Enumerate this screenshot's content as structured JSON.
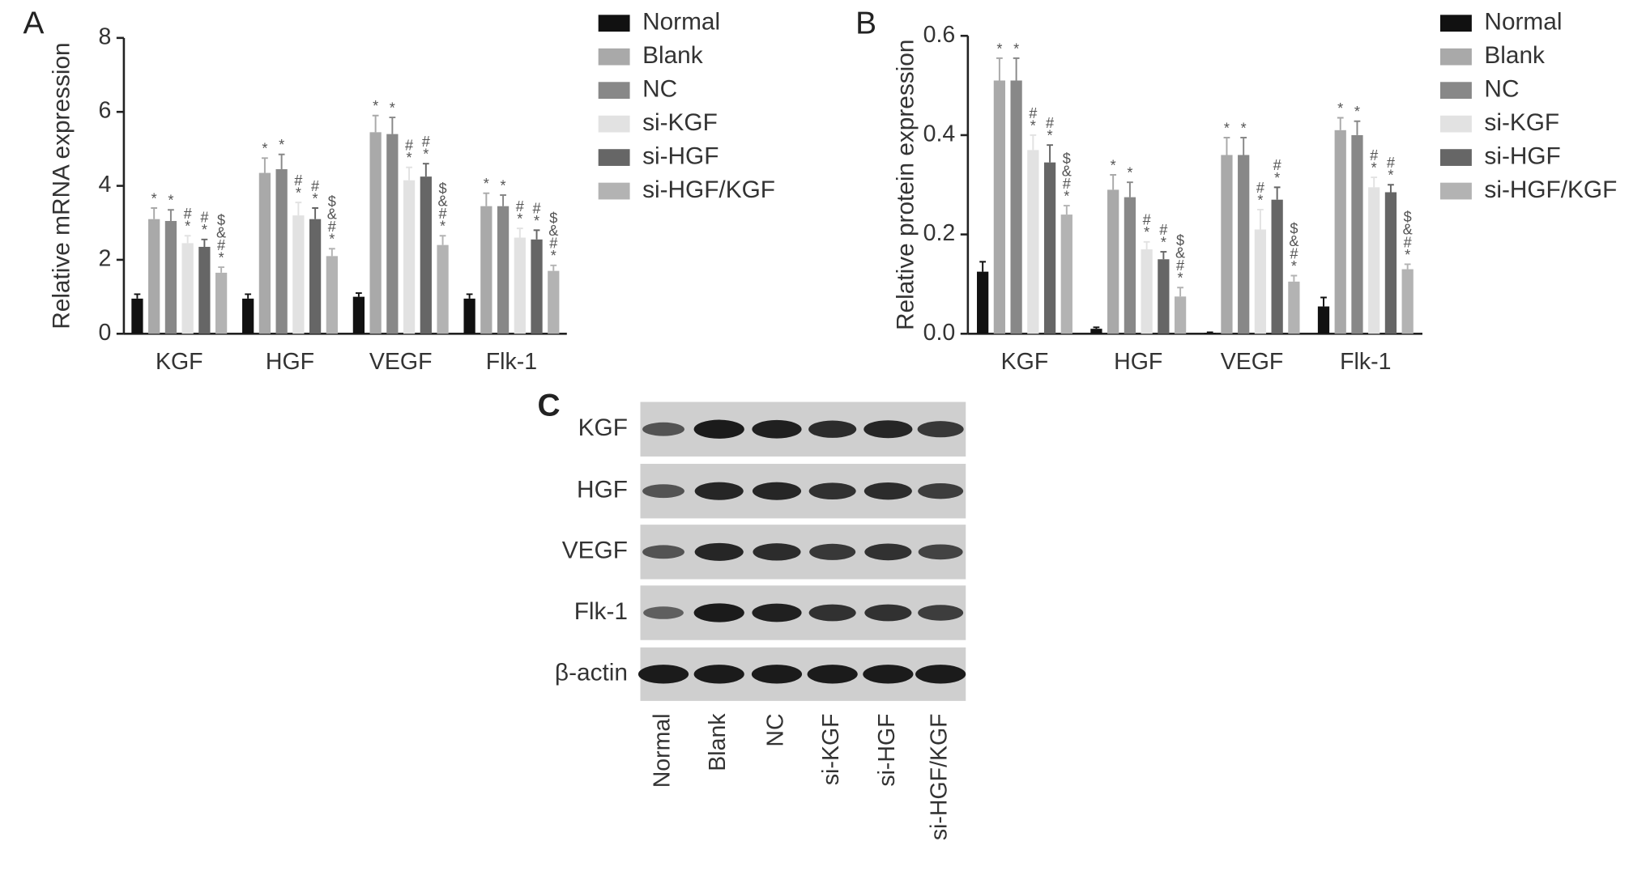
{
  "chart_data": [
    {
      "type": "bar",
      "panel_label": "A",
      "ylabel": "Relative mRNA expression",
      "categories": [
        "KGF",
        "HGF",
        "VEGF",
        "Flk-1"
      ],
      "ylim": [
        0,
        8
      ],
      "yticks": [
        0,
        2,
        4,
        6,
        8
      ],
      "series": [
        {
          "name": "Normal",
          "color": "#111111",
          "values": [
            0.95,
            0.95,
            1.0,
            0.95
          ],
          "errors": [
            0.12,
            0.12,
            0.1,
            0.12
          ],
          "marks": [
            [],
            [],
            [],
            []
          ]
        },
        {
          "name": "Blank",
          "color": "#a9a9a9",
          "values": [
            3.1,
            4.35,
            5.45,
            3.45
          ],
          "errors": [
            0.3,
            0.4,
            0.45,
            0.35
          ],
          "marks": [
            [
              "*"
            ],
            [
              "*"
            ],
            [
              "*"
            ],
            [
              "*"
            ]
          ]
        },
        {
          "name": "NC",
          "color": "#888888",
          "values": [
            3.05,
            4.45,
            5.4,
            3.45
          ],
          "errors": [
            0.3,
            0.4,
            0.45,
            0.3
          ],
          "marks": [
            [
              "*"
            ],
            [
              "*"
            ],
            [
              "*"
            ],
            [
              "*"
            ]
          ]
        },
        {
          "name": "si-KGF",
          "color": "#e2e2e2",
          "values": [
            2.45,
            3.2,
            4.15,
            2.6
          ],
          "errors": [
            0.2,
            0.35,
            0.35,
            0.25
          ],
          "marks": [
            [
              "*",
              "#"
            ],
            [
              "*",
              "#"
            ],
            [
              "*",
              "#"
            ],
            [
              "*",
              "#"
            ]
          ]
        },
        {
          "name": "si-HGF",
          "color": "#666666",
          "values": [
            2.35,
            3.1,
            4.25,
            2.55
          ],
          "errors": [
            0.2,
            0.3,
            0.35,
            0.25
          ],
          "marks": [
            [
              "*",
              "#"
            ],
            [
              "*",
              "#"
            ],
            [
              "*",
              "#"
            ],
            [
              "*",
              "#"
            ]
          ]
        },
        {
          "name": "si-HGF/KGF",
          "color": "#b3b3b3",
          "values": [
            1.65,
            2.1,
            2.4,
            1.7
          ],
          "errors": [
            0.15,
            0.2,
            0.25,
            0.15
          ],
          "marks": [
            [
              "*",
              "#",
              "&",
              "$"
            ],
            [
              "*",
              "#",
              "&",
              "$"
            ],
            [
              "*",
              "#",
              "&",
              "$"
            ],
            [
              "*",
              "#",
              "&",
              "$"
            ]
          ]
        }
      ]
    },
    {
      "type": "bar",
      "panel_label": "B",
      "ylabel": "Relative protein expression",
      "categories": [
        "KGF",
        "HGF",
        "VEGF",
        "Flk-1"
      ],
      "ylim": [
        0,
        0.6
      ],
      "yticks": [
        {
          "value": 0,
          "label": "0.0"
        },
        0.2,
        0.4,
        0.6
      ],
      "series": [
        {
          "name": "Normal",
          "color": "#111111",
          "values": [
            0.125,
            0.01,
            0.002,
            0.055
          ],
          "errors": [
            0.02,
            0.003,
            0.001,
            0.018
          ],
          "marks": [
            [],
            [],
            [],
            []
          ]
        },
        {
          "name": "Blank",
          "color": "#a9a9a9",
          "values": [
            0.51,
            0.29,
            0.36,
            0.41
          ],
          "errors": [
            0.045,
            0.03,
            0.035,
            0.025
          ],
          "marks": [
            [
              "*"
            ],
            [
              "*"
            ],
            [
              "*"
            ],
            [
              "*"
            ]
          ]
        },
        {
          "name": "NC",
          "color": "#888888",
          "values": [
            0.51,
            0.275,
            0.36,
            0.4
          ],
          "errors": [
            0.045,
            0.03,
            0.035,
            0.028
          ],
          "marks": [
            [
              "*"
            ],
            [
              "*"
            ],
            [
              "*"
            ],
            [
              "*"
            ]
          ]
        },
        {
          "name": "si-KGF",
          "color": "#e2e2e2",
          "values": [
            0.37,
            0.17,
            0.21,
            0.295
          ],
          "errors": [
            0.03,
            0.015,
            0.04,
            0.02
          ],
          "marks": [
            [
              "*",
              "#"
            ],
            [
              "*",
              "#"
            ],
            [
              "*",
              "#"
            ],
            [
              "*",
              "#"
            ]
          ]
        },
        {
          "name": "si-HGF",
          "color": "#666666",
          "values": [
            0.345,
            0.15,
            0.27,
            0.285
          ],
          "errors": [
            0.035,
            0.015,
            0.025,
            0.015
          ],
          "marks": [
            [
              "*",
              "#"
            ],
            [
              "*",
              "#"
            ],
            [
              "*",
              "#"
            ],
            [
              "*",
              "#"
            ]
          ]
        },
        {
          "name": "si-HGF/KGF",
          "color": "#b3b3b3",
          "values": [
            0.24,
            0.075,
            0.105,
            0.13
          ],
          "errors": [
            0.018,
            0.018,
            0.012,
            0.01
          ],
          "marks": [
            [
              "*",
              "#",
              "&",
              "$"
            ],
            [
              "*",
              "#",
              "&",
              "$"
            ],
            [
              "*",
              "#",
              "&",
              "$"
            ],
            [
              "*",
              "#",
              "&",
              "$"
            ]
          ]
        }
      ]
    }
  ],
  "blot": {
    "panel_label": "C",
    "rows": [
      "KGF",
      "HGF",
      "VEGF",
      "Flk-1",
      "β-actin"
    ],
    "columns": [
      "Normal",
      "Blank",
      "NC",
      "si-KGF",
      "si-HGF",
      "si-HGF/KGF"
    ]
  }
}
